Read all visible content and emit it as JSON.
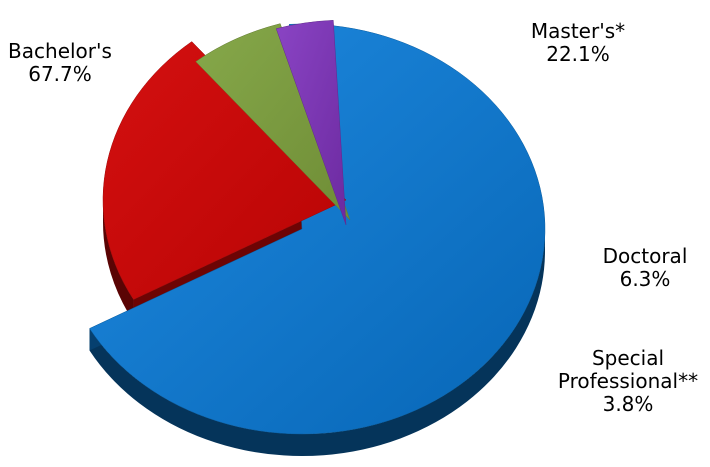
{
  "chart_data": {
    "type": "pie",
    "style": "3d-exploded",
    "title": "",
    "categories": [
      "Bachelor's",
      "Master's*",
      "Doctoral",
      "Special Professional**"
    ],
    "values": [
      67.7,
      22.1,
      6.3,
      3.8
    ],
    "value_labels": [
      "67.7%",
      "22.1%",
      "6.3%",
      "3.8%"
    ],
    "colors": [
      "#0a74c9",
      "#c70808",
      "#7a9a3e",
      "#7a34b0"
    ],
    "exploded": [
      false,
      true,
      true,
      true
    ],
    "label_lines": [
      [
        "Bachelor's",
        "67.7%"
      ],
      [
        "Master's*",
        "22.1%"
      ],
      [
        "Doctoral",
        "6.3%"
      ],
      [
        "Special",
        "Professional**",
        "3.8%"
      ]
    ]
  }
}
